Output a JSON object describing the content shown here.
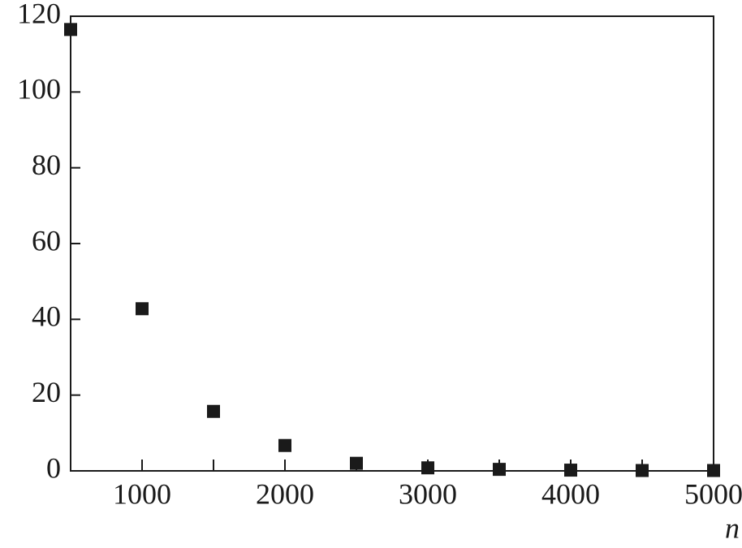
{
  "chart_data": {
    "type": "scatter",
    "x_label": "n",
    "x": [
      500,
      1000,
      1500,
      2000,
      2500,
      3000,
      3500,
      4000,
      4500,
      5000
    ],
    "values": [
      116.5,
      42.8,
      15.7,
      6.7,
      2,
      0.8,
      0.4,
      0.2,
      0.1,
      0.1
    ],
    "color": "#1a1a1a",
    "marker": "square",
    "xlim": [
      500,
      5000
    ],
    "xticks": [
      1000,
      2000,
      3000,
      4000,
      5000
    ],
    "xminorticks": [
      1500,
      2500,
      3500,
      4500
    ],
    "ylim": [
      0,
      120
    ],
    "yticks": [
      0,
      20,
      40,
      60,
      80,
      100,
      120
    ]
  }
}
